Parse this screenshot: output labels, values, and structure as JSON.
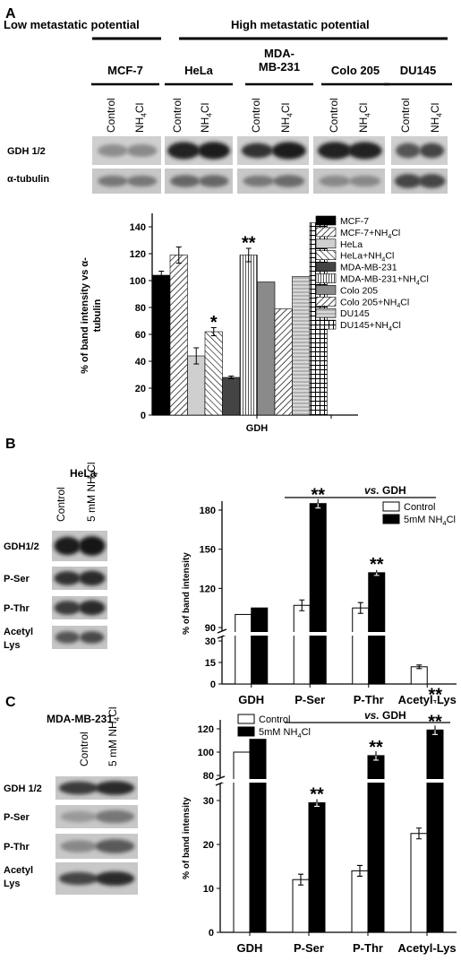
{
  "panel_a": {
    "letter": "A",
    "low_label": "Low metastatic potential",
    "high_label": "High metastatic potential",
    "cell_lines": [
      "MCF-7",
      "HeLa",
      "MDA-\nMB-231",
      "Colo 205",
      "DU145"
    ],
    "lane_labels": [
      "Control",
      "NH4Cl"
    ],
    "blot_rows": [
      "GDH 1/2",
      "α-tubulin"
    ]
  },
  "panel_b": {
    "letter": "B",
    "cell_line": "HeLa",
    "lane_labels": [
      "Control",
      "5 mM NH4Cl"
    ],
    "blot_rows": [
      "GDH1/2",
      "P-Ser",
      "P-Thr",
      "Acetyl\nLys"
    ]
  },
  "panel_c": {
    "letter": "C",
    "cell_line": "MDA-MB-231",
    "lane_labels": [
      "Control",
      "5 mM NH4Cl"
    ],
    "blot_rows": [
      "GDH 1/2",
      "P-Ser",
      "P-Thr",
      "Acetyl\nLys"
    ]
  },
  "chart_data": [
    {
      "type": "bar",
      "ylabel": "% of band intensity vs α-tubulin",
      "xlabel": "GDH",
      "ylim": [
        0,
        150
      ],
      "yticks": [
        0,
        20,
        40,
        60,
        80,
        100,
        120,
        140
      ],
      "series": [
        {
          "name": "MCF-7",
          "values": [
            104
          ]
        },
        {
          "name": "MCF-7+NH4Cl",
          "values": [
            119
          ]
        },
        {
          "name": "HeLa",
          "values": [
            44
          ]
        },
        {
          "name": "HeLa+NH4Cl",
          "values": [
            62
          ]
        },
        {
          "name": "MDA-MB-231",
          "values": [
            28
          ]
        },
        {
          "name": "MDA-MB-231+NH4Cl",
          "values": [
            119
          ]
        },
        {
          "name": "Colo 205",
          "values": [
            99
          ]
        },
        {
          "name": "Colo 205+NH4Cl",
          "values": [
            79
          ]
        },
        {
          "name": "DU145",
          "values": [
            103
          ]
        },
        {
          "name": "DU145+NH4Cl",
          "values": [
            143
          ]
        }
      ],
      "annotations": [
        {
          "text": "*",
          "series": "HeLa+NH4Cl"
        },
        {
          "text": "**",
          "series": "MDA-MB-231+NH4Cl"
        }
      ]
    },
    {
      "type": "bar",
      "ylabel": "% of band intensity",
      "categories": [
        "GDH",
        "P-Ser",
        "P-Thr",
        "Acetyl-Lys"
      ],
      "yticks": [
        0,
        15,
        30,
        90,
        120,
        150,
        180
      ],
      "axis_break": [
        35,
        85
      ],
      "series": [
        {
          "name": "Control",
          "values": [
            100,
            107,
            105,
            12
          ]
        },
        {
          "name": "5mM NH4Cl",
          "values": [
            105,
            185,
            132,
            32
          ]
        }
      ],
      "comparison_label": "vs. GDH",
      "annotations": [
        {
          "text": "**",
          "category": "P-Ser"
        },
        {
          "text": "**",
          "category": "P-Thr"
        },
        {
          "text": "**",
          "category": "Acetyl-Lys"
        }
      ]
    },
    {
      "type": "bar",
      "ylabel": "% of band intensity",
      "categories": [
        "GDH",
        "P-Ser",
        "P-Thr",
        "Acetyl-Lys"
      ],
      "yticks": [
        0,
        10,
        20,
        30,
        80,
        100,
        120
      ],
      "axis_break": [
        33,
        78
      ],
      "series": [
        {
          "name": "Control",
          "values": [
            100,
            12,
            14,
            22.5
          ]
        },
        {
          "name": "5mM NH4Cl",
          "values": [
            111,
            29.5,
            97,
            119
          ]
        }
      ],
      "comparison_label": "vs. GDH",
      "annotations": [
        {
          "text": "**",
          "category": "P-Ser"
        },
        {
          "text": "**",
          "category": "P-Thr"
        },
        {
          "text": "**",
          "category": "Acetyl-Lys"
        }
      ]
    }
  ]
}
